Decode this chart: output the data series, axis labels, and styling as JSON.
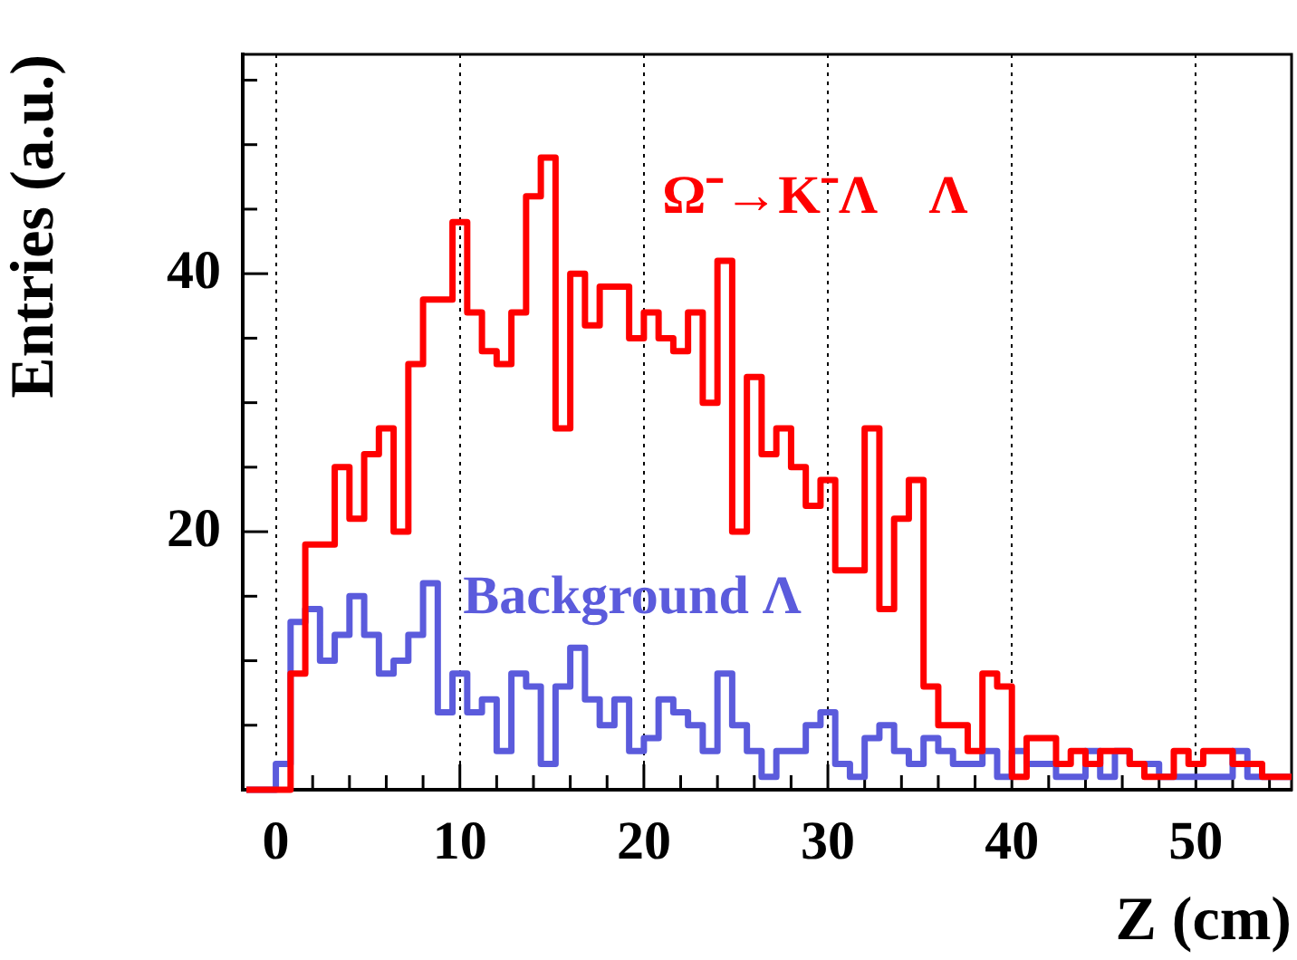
{
  "chart_data": {
    "type": "histogram",
    "xlabel": "Z (cm)",
    "ylabel": "Entries (a.u.)",
    "bins": [
      -1.6,
      -0.8,
      0,
      0.8,
      1.6,
      2.4,
      3.2,
      4,
      4.8,
      5.6,
      6.4,
      7.2,
      8,
      8.8,
      9.6,
      10.4,
      11.2,
      12,
      12.8,
      13.6,
      14.4,
      15.2,
      16,
      16.8,
      17.6,
      18.4,
      19.2,
      20,
      20.8,
      21.6,
      22.4,
      23.2,
      24,
      24.8,
      25.6,
      26.4,
      27.2,
      28,
      28.8,
      29.6,
      30.4,
      31.2,
      32,
      32.8,
      33.6,
      34.4,
      35.2,
      36,
      36.8,
      37.6,
      38.4,
      39.2,
      40,
      40.8,
      41.6,
      42.4,
      43.2,
      44,
      44.8,
      45.6,
      46.4,
      47.2,
      48,
      48.8,
      49.6,
      50.4,
      51.2,
      52,
      52.8,
      53.6,
      54.4,
      55.2
    ],
    "series": [
      {
        "name": "Ω⁻→K⁻Λ    Λ",
        "color": "#ff0000",
        "values": [
          0,
          0,
          0,
          9,
          19,
          19,
          25,
          21,
          26,
          28,
          20,
          33,
          38,
          38,
          44,
          37,
          34,
          33,
          37,
          46,
          49,
          28,
          40,
          36,
          39,
          39,
          35,
          37,
          35,
          34,
          37,
          30,
          41,
          20,
          32,
          26,
          28,
          25,
          22,
          24,
          17,
          17,
          28,
          14,
          21,
          24,
          8,
          5,
          5,
          3,
          9,
          8,
          1,
          4,
          4,
          2,
          3,
          2,
          3,
          3,
          2,
          1,
          1,
          3,
          2,
          3,
          3,
          2,
          2,
          1,
          1
        ]
      },
      {
        "name": "Background Λ",
        "color": "#5b5bdc",
        "values": [
          0,
          0,
          2,
          13,
          14,
          10,
          12,
          15,
          12,
          9,
          10,
          12,
          16,
          6,
          9,
          6,
          7,
          3,
          9,
          8,
          2,
          8,
          11,
          7,
          5,
          7,
          3,
          4,
          7,
          6,
          5,
          3,
          9,
          5,
          3,
          1,
          3,
          3,
          5,
          6,
          2,
          1,
          4,
          5,
          3,
          2,
          4,
          3,
          2,
          2,
          3,
          1,
          3,
          2,
          2,
          1,
          1,
          3,
          1,
          3,
          2,
          2,
          1,
          1,
          1,
          1,
          1,
          3,
          1,
          1,
          1
        ]
      }
    ],
    "xlim": [
      -1.8,
      55.2
    ],
    "ylim": [
      0,
      57
    ],
    "xticks": [
      0,
      {
        "value": 2,
        "label": null
      },
      {
        "value": 4,
        "label": null
      },
      {
        "value": 6,
        "label": null
      },
      {
        "value": 8,
        "label": null
      },
      10,
      {
        "value": 12,
        "label": null
      },
      {
        "value": 14,
        "label": null
      },
      {
        "value": 16,
        "label": null
      },
      {
        "value": 18,
        "label": null
      },
      20,
      {
        "value": 22,
        "label": null
      },
      {
        "value": 24,
        "label": null
      },
      {
        "value": 26,
        "label": null
      },
      {
        "value": 28,
        "label": null
      },
      30,
      {
        "value": 32,
        "label": null
      },
      {
        "value": 34,
        "label": null
      },
      {
        "value": 36,
        "label": null
      },
      {
        "value": 38,
        "label": null
      },
      40,
      {
        "value": 42,
        "label": null
      },
      {
        "value": 44,
        "label": null
      },
      {
        "value": 46,
        "label": null
      },
      {
        "value": 48,
        "label": null
      },
      50,
      {
        "value": 52,
        "label": null
      },
      {
        "value": 54,
        "label": null
      }
    ],
    "yticks": [
      {
        "value": 5,
        "label": null
      },
      {
        "value": 10,
        "label": null
      },
      {
        "value": 15,
        "label": null
      },
      20,
      {
        "value": 25,
        "label": null
      },
      {
        "value": 30,
        "label": null
      },
      {
        "value": 35,
        "label": null
      },
      40,
      {
        "value": 45,
        "label": null
      },
      {
        "value": 50,
        "label": null
      },
      {
        "value": 55,
        "label": null
      }
    ],
    "grid": "x",
    "legend": false,
    "line_style": "solid",
    "marker": "none"
  }
}
